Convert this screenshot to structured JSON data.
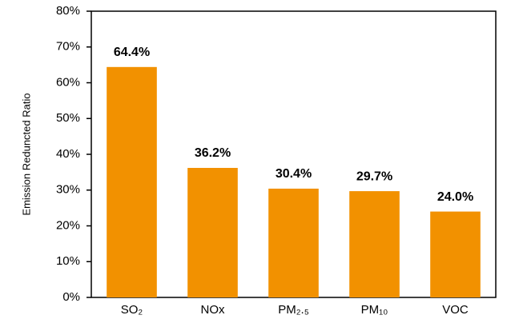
{
  "chart_data": {
    "type": "bar",
    "y_label": "Emission Reduncted Ratio",
    "categories": [
      "SO₂",
      "NOx",
      "PM₂.₅",
      "PM₁₀",
      "VOC"
    ],
    "values": [
      64.4,
      36.2,
      30.4,
      29.7,
      24.0
    ],
    "value_labels": [
      "64.4%",
      "36.2%",
      "30.4%",
      "29.7%",
      "24.0%"
    ],
    "color": "#f29100",
    "ylim": [
      0,
      80
    ],
    "yticks": [
      {
        "value": 0,
        "label": "0%"
      },
      {
        "value": 10,
        "label": "10%"
      },
      {
        "value": 20,
        "label": "20%"
      },
      {
        "value": 30,
        "label": "30%"
      },
      {
        "value": 40,
        "label": "40%"
      },
      {
        "value": 50,
        "label": "50%"
      },
      {
        "value": 60,
        "label": "60%"
      },
      {
        "value": 70,
        "label": "70%"
      },
      {
        "value": 80,
        "label": "80%"
      }
    ]
  }
}
